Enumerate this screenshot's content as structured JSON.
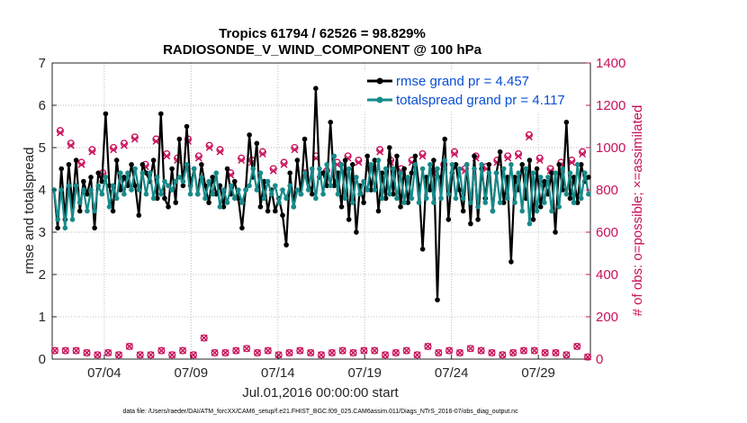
{
  "chart_data": {
    "type": "line",
    "title": "Tropics 61794 / 62526 = 98.829%",
    "subtitle": "RADIOSONDE_V_WIND_COMPONENT @ 100 hPa",
    "xlabel": "Jul.01,2016 00:00:00 start",
    "ylabel_left": "rmse and totalspread",
    "ylabel_right": "# of obs: o=possible; ×=assimilated",
    "ylim_left": [
      0,
      7
    ],
    "ylim_right": [
      0,
      1400
    ],
    "xlim_days": [
      1.0,
      32.0
    ],
    "left_ticks": [
      "0",
      "1",
      "2",
      "3",
      "4",
      "5",
      "6",
      "7"
    ],
    "right_ticks": [
      "0",
      "200",
      "400",
      "600",
      "800",
      "1000",
      "1200",
      "1400"
    ],
    "x_ticks": [
      {
        "day": 4,
        "label": "07/04"
      },
      {
        "day": 9,
        "label": "07/09"
      },
      {
        "day": 14,
        "label": "07/14"
      },
      {
        "day": 19,
        "label": "07/19"
      },
      {
        "day": 24,
        "label": "07/24"
      },
      {
        "day": 29,
        "label": "07/29"
      }
    ],
    "grid": true,
    "legend_position": "top-right",
    "series": [
      {
        "name": "rmse grand pr = 4.457",
        "axis": "left",
        "color": "#000000",
        "values": [
          4.0,
          3.1,
          4.5,
          3.3,
          4.6,
          3.6,
          4.7,
          3.5,
          4.2,
          3.9,
          4.3,
          3.1,
          4.4,
          4.2,
          5.8,
          4.1,
          3.5,
          4.7,
          4.0,
          4.3,
          4.1,
          4.6,
          4.1,
          3.4,
          4.6,
          4.4,
          4.2,
          4.7,
          3.8,
          5.8,
          3.8,
          3.6,
          4.5,
          3.7,
          5.2,
          4.1,
          5.5,
          4.1,
          4.5,
          3.9,
          4.6,
          4.1,
          3.7,
          4.3,
          3.9,
          4.1,
          3.6,
          4.5,
          3.9,
          4.2,
          3.8,
          3.1,
          4.0,
          5.3,
          4.3,
          5.1,
          3.6,
          4.2,
          3.5,
          4.0,
          3.5,
          3.8,
          3.4,
          2.7,
          4.4,
          3.6,
          4.7,
          3.9,
          5.2,
          4.2,
          3.9,
          6.4,
          4.3,
          4.4,
          4.1,
          5.6,
          4.1,
          4.4,
          3.6,
          4.7,
          3.3,
          4.6,
          3.0,
          4.1,
          3.7,
          4.8,
          4.0,
          4.7,
          3.5,
          4.4,
          3.8,
          5.0,
          3.9,
          4.8,
          3.6,
          4.5,
          3.7,
          4.4,
          4.8,
          4.1,
          2.6,
          4.3,
          4.0,
          4.7,
          1.4,
          4.3,
          5.2,
          3.3,
          4.4,
          4.6,
          4.0,
          3.5,
          4.6,
          3.2,
          4.8,
          3.3,
          4.5,
          3.8,
          4.6,
          3.5,
          4.4,
          4.9,
          3.7,
          4.3,
          2.3,
          4.3,
          4.0,
          4.6,
          3.8,
          4.7,
          3.3,
          4.5,
          3.6,
          4.2,
          3.9,
          4.4,
          3.0,
          4.6,
          4.0,
          5.6,
          3.8,
          4.3,
          3.7,
          4.6,
          4.2,
          4.3
        ]
      },
      {
        "name": "totalspread grand pr = 4.117",
        "axis": "left",
        "color": "#178a8a",
        "values": [
          4.0,
          3.3,
          4.0,
          3.1,
          4.1,
          3.3,
          4.1,
          3.7,
          4.0,
          3.5,
          4.0,
          3.5,
          4.1,
          3.9,
          4.3,
          3.6,
          4.1,
          3.8,
          4.4,
          3.9,
          4.4,
          4.0,
          4.5,
          4.0,
          4.4,
          3.9,
          4.4,
          3.8,
          4.3,
          3.9,
          4.2,
          4.1,
          4.0,
          4.2,
          4.3,
          4.2,
          4.6,
          3.9,
          4.5,
          3.9,
          4.3,
          3.8,
          4.2,
          3.9,
          4.4,
          3.6,
          4.0,
          3.7,
          4.1,
          3.8,
          4.0,
          3.7,
          4.0,
          4.1,
          4.5,
          4.0,
          4.4,
          3.8,
          4.2,
          3.9,
          4.1,
          3.7,
          4.0,
          3.8,
          4.1,
          3.6,
          4.0,
          3.9,
          4.4,
          4.0,
          4.5,
          3.8,
          4.5,
          3.9,
          4.6,
          4.1,
          4.8,
          3.9,
          4.6,
          3.8,
          4.5,
          3.7,
          4.3,
          3.9,
          4.2,
          4.0,
          4.6,
          4.0,
          4.7,
          3.8,
          4.5,
          3.9,
          4.5,
          3.8,
          4.4,
          3.7,
          4.3,
          3.8,
          4.6,
          3.7,
          4.5,
          3.8,
          4.6,
          3.7,
          4.5,
          3.8,
          4.7,
          3.9,
          4.6,
          3.8,
          4.5,
          3.8,
          4.6,
          3.7,
          4.5,
          3.6,
          4.6,
          3.7,
          4.4,
          3.5,
          4.4,
          3.7,
          4.5,
          3.8,
          4.6,
          3.7,
          4.4,
          3.5,
          4.5,
          3.2,
          4.4,
          3.5,
          4.3,
          3.7,
          4.3,
          3.5,
          4.4,
          3.6,
          4.5,
          3.9,
          4.4,
          3.7,
          4.6,
          3.8,
          4.4,
          3.9
        ]
      },
      {
        "name": "obs possible (o)",
        "axis": "right",
        "color": "#c8105a",
        "marker": "o",
        "values": [
          40,
          1080,
          40,
          1020,
          40,
          930,
          30,
          990,
          20,
          880,
          30,
          1000,
          20,
          1020,
          60,
          1050,
          20,
          920,
          20,
          1040,
          40,
          970,
          20,
          950,
          40,
          1040,
          20,
          960,
          100,
          1010,
          30,
          990,
          30,
          880,
          40,
          950,
          50,
          940,
          30,
          980,
          40,
          900,
          20,
          930,
          30,
          1000,
          40,
          880,
          30,
          960,
          20,
          890,
          30,
          930,
          40,
          960,
          30,
          940,
          40,
          910,
          40,
          990,
          20,
          940,
          30,
          900,
          40,
          940,
          20,
          970,
          60,
          890,
          30,
          920,
          40,
          980,
          30,
          900,
          50,
          960,
          40,
          910,
          30,
          940,
          20,
          960,
          30,
          970,
          40,
          1060,
          40,
          950,
          30,
          900,
          30,
          930,
          20,
          940,
          60,
          980,
          10
        ]
      },
      {
        "name": "obs assimilated (×)",
        "axis": "right",
        "color": "#c8105a",
        "marker": "x",
        "values": [
          40,
          1070,
          40,
          1010,
          40,
          920,
          30,
          980,
          20,
          870,
          30,
          990,
          20,
          1010,
          60,
          1040,
          20,
          910,
          20,
          1030,
          40,
          960,
          20,
          940,
          40,
          1030,
          20,
          950,
          100,
          1000,
          30,
          980,
          30,
          870,
          40,
          940,
          50,
          930,
          30,
          970,
          40,
          890,
          20,
          920,
          30,
          990,
          40,
          870,
          30,
          950,
          20,
          880,
          30,
          920,
          40,
          950,
          30,
          930,
          40,
          900,
          40,
          980,
          20,
          930,
          30,
          890,
          40,
          930,
          20,
          960,
          60,
          880,
          30,
          910,
          40,
          970,
          30,
          890,
          50,
          950,
          40,
          900,
          30,
          930,
          20,
          950,
          30,
          960,
          40,
          1050,
          40,
          940,
          30,
          890,
          30,
          920,
          20,
          930,
          60,
          970,
          10
        ]
      }
    ],
    "footnote": "data file: /Users/raeder/DAI/ATM_forcXX/CAM6_setup/f.e21.FHIST_BGC.f09_025.CAM6assim.011/Diags_NTrS_2016-07/obs_diag_output.nc"
  }
}
